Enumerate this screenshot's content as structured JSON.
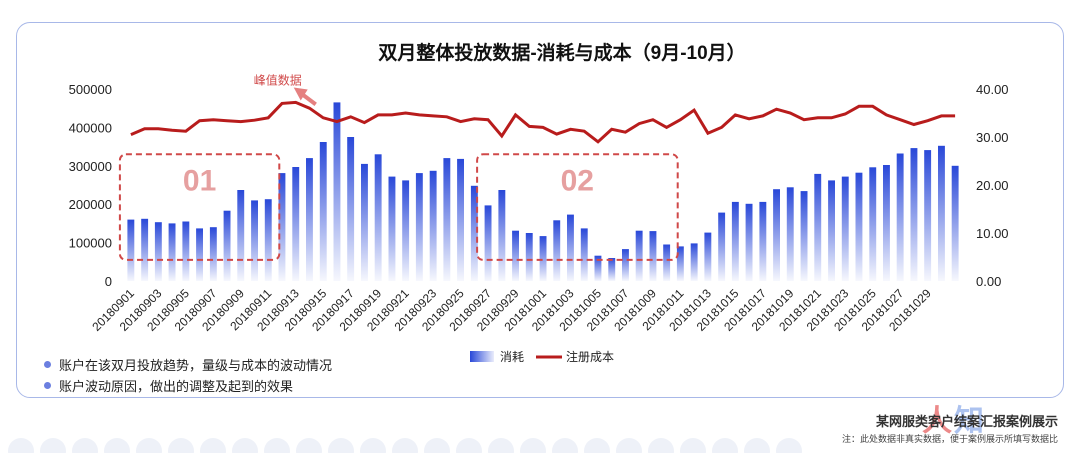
{
  "footer": {
    "title": "某网服类客户结案汇报案例展示",
    "note": "注：此处数据非真实数据，便于案例展示所填写数据比",
    "watermark": "人",
    "watermark2": "知"
  },
  "bullets": [
    "账户在该双月投放趋势，量级与成本的波动情况",
    "账户波动原因，做出的调整及起到的效果"
  ],
  "chart_data": {
    "type": "bar",
    "title": "双月整体投放数据-消耗与成本（9月-10月）",
    "annotation": "峰值数据",
    "box_labels": [
      "01",
      "02"
    ],
    "y_ticks": [
      "0",
      "100000",
      "200000",
      "300000",
      "400000",
      "500000"
    ],
    "y2_ticks": [
      "0.00",
      "10.00",
      "20.00",
      "30.00",
      "40.00"
    ],
    "ylim": [
      0,
      500000
    ],
    "y2lim": [
      0,
      40
    ],
    "colors": {
      "bar": "#2948d8",
      "line": "#b81c1c",
      "box": "#d04848"
    },
    "x": [
      "20180901",
      "20180902",
      "20180903",
      "20180904",
      "20180905",
      "20180906",
      "20180907",
      "20180908",
      "20180909",
      "20180910",
      "20180911",
      "20180912",
      "20180913",
      "20180914",
      "20180915",
      "20180916",
      "20180917",
      "20180918",
      "20180919",
      "20180920",
      "20180921",
      "20180922",
      "20180923",
      "20180924",
      "20180925",
      "20180926",
      "20180927",
      "20180928",
      "20180929",
      "20180930",
      "20181001",
      "20181002",
      "20181003",
      "20181004",
      "20181005",
      "20181006",
      "20181007",
      "20181008",
      "20181009",
      "20181010",
      "20181011",
      "20181012",
      "20181013",
      "20181014",
      "20181015",
      "20181016",
      "20181017",
      "20181018",
      "20181019",
      "20181020",
      "20181021",
      "20181022",
      "20181023",
      "20181024",
      "20181025",
      "20181026",
      "20181027",
      "20181028",
      "20181029",
      "20181030",
      "20181031"
    ],
    "series": [
      {
        "name": "消耗",
        "type": "bar",
        "values": [
          160000,
          162000,
          153000,
          150000,
          155000,
          137000,
          140000,
          183000,
          237000,
          210000,
          213000,
          281000,
          297000,
          320000,
          362000,
          465000,
          375000,
          305000,
          330000,
          272000,
          262000,
          281000,
          287000,
          320000,
          318000,
          248000,
          197000,
          237000,
          131000,
          125000,
          117000,
          158000,
          173000,
          137000,
          66000,
          60000,
          83000,
          131000,
          130000,
          95000,
          90000,
          98000,
          126000,
          178000,
          206000,
          201000,
          206000,
          239000,
          244000,
          234000,
          279000,
          262000,
          272000,
          282000,
          296000,
          302000,
          332000,
          346000,
          341000,
          352000,
          300000
        ]
      },
      {
        "name": "注册成本",
        "type": "line",
        "values": [
          30.5,
          31.7,
          31.7,
          31.4,
          31.2,
          33.4,
          33.6,
          33.4,
          33.2,
          33.5,
          34.0,
          37.0,
          37.2,
          36.0,
          34.0,
          33.2,
          34.2,
          33.0,
          34.6,
          34.6,
          35.0,
          34.6,
          34.4,
          34.2,
          33.2,
          33.8,
          33.6,
          30.2,
          34.6,
          32.2,
          32.0,
          30.6,
          31.6,
          31.2,
          29.0,
          31.6,
          31.0,
          32.8,
          33.6,
          32.0,
          33.6,
          35.6,
          30.8,
          32.0,
          34.6,
          33.8,
          34.4,
          35.8,
          35.0,
          33.6,
          34.0,
          34.0,
          34.8,
          36.4,
          36.4,
          34.6,
          33.6,
          32.6,
          33.4,
          34.4,
          34.4
        ]
      }
    ],
    "x_tick_labels": [
      "20180901",
      "20180903",
      "20180905",
      "20180907",
      "20180909",
      "20180911",
      "20180913",
      "20180915",
      "20180917",
      "20180919",
      "20180921",
      "20180923",
      "20180925",
      "20180927",
      "20180929",
      "20181001",
      "20181003",
      "20181005",
      "20181007",
      "20181009",
      "20181011",
      "20181013",
      "20181015",
      "20181017",
      "20181019",
      "20181021",
      "20181023",
      "20181025",
      "20181027",
      "20181029"
    ],
    "legend": [
      "消耗",
      "注册成本"
    ]
  }
}
